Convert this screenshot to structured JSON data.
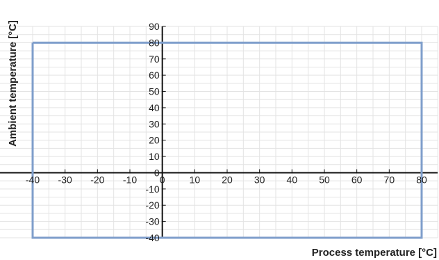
{
  "colors": {
    "grid": "#e3e3e3",
    "axis": "#111111",
    "series": "#7f9ecb",
    "text": "#222222"
  },
  "chart_data": {
    "type": "line",
    "xlabel": "Process temperature [°C]",
    "ylabel": "Ambient temperature [°C]",
    "xlim": [
      -40,
      85
    ],
    "ylim": [
      -40,
      90
    ],
    "grid": true,
    "x_ticks": [
      -40,
      -30,
      -20,
      -10,
      0,
      10,
      20,
      30,
      40,
      50,
      60,
      70,
      80
    ],
    "y_ticks": [
      90,
      80,
      70,
      60,
      50,
      40,
      30,
      20,
      10,
      0,
      -10,
      -20,
      -30,
      -40
    ],
    "series": [
      {
        "x": [
          -40,
          80,
          80,
          -40,
          -40
        ],
        "y": [
          80,
          80,
          -40,
          -40,
          80
        ]
      }
    ]
  }
}
